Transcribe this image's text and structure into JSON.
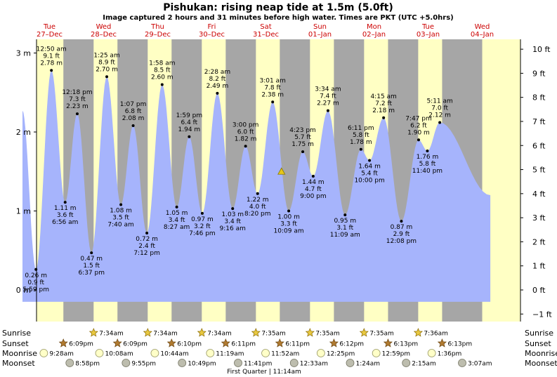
{
  "title": "Pishukan: rising  neap tide at 1.5m (5.0ft)",
  "subtitle": "Image captured 2 hours and 31 minutes before high water. Times are PKT (UTC +5.0hrs)",
  "days": [
    {
      "name": "Tue",
      "date": "27–Dec"
    },
    {
      "name": "Wed",
      "date": "28–Dec"
    },
    {
      "name": "Thu",
      "date": "29–Dec"
    },
    {
      "name": "Fri",
      "date": "30–Dec"
    },
    {
      "name": "Sat",
      "date": "31–Dec"
    },
    {
      "name": "Sun",
      "date": "01–Jan"
    },
    {
      "name": "Mon",
      "date": "02–Jan"
    },
    {
      "name": "Tue",
      "date": "03–Jan"
    },
    {
      "name": "Wed",
      "date": "04–Jan"
    }
  ],
  "chart_data": {
    "type": "area",
    "x_unit": "days after 27-Dec 00:00 (PKT)",
    "y_unit": "m",
    "ylim": [
      -0.5,
      3.2
    ],
    "xlim": [
      0,
      8.5
    ],
    "y_ticks_m": [
      {
        "v": 0,
        "label": "0 m"
      },
      {
        "v": 1,
        "label": "1 m"
      },
      {
        "v": 2,
        "label": "2 m"
      },
      {
        "v": 3,
        "label": "3 m"
      }
    ],
    "y_ticks_ft": [
      {
        "v": -1,
        "label": "−1 ft"
      },
      {
        "v": 0,
        "label": "0 ft"
      },
      {
        "v": 1,
        "label": "1 ft"
      },
      {
        "v": 2,
        "label": "2 ft"
      },
      {
        "v": 3,
        "label": "3 ft"
      },
      {
        "v": 4,
        "label": "4 ft"
      },
      {
        "v": 5,
        "label": "5 ft"
      },
      {
        "v": 6,
        "label": "6 ft"
      },
      {
        "v": 7,
        "label": "7 ft"
      },
      {
        "v": 8,
        "label": "8 ft"
      },
      {
        "v": 9,
        "label": "9 ft"
      },
      {
        "v": 10,
        "label": "10 ft"
      }
    ],
    "series_start": {
      "x": 0.0,
      "y": 2.27
    },
    "series_end": {
      "x": 8.65,
      "y": 1.2
    },
    "extremes": [
      {
        "x": 0.2493,
        "time": "5:59 pm",
        "m": "0.26 m",
        "ft": "0.9 ft",
        "type": "low",
        "value": 0.26
      },
      {
        "x": 0.5347,
        "time": "12:50 am",
        "m": "2.78 m",
        "ft": "9.1 ft",
        "type": "high",
        "value": 2.78
      },
      {
        "x": 0.7889,
        "time": "6:56 am",
        "m": "1.11 m",
        "ft": "3.6 ft",
        "type": "low",
        "value": 1.11
      },
      {
        "x": 1.0125,
        "time": "12:18 pm",
        "m": "2.23 m",
        "ft": "7.3 ft",
        "type": "high",
        "value": 2.23
      },
      {
        "x": 1.2757,
        "time": "6:37 pm",
        "m": "0.47 m",
        "ft": "1.5 ft",
        "type": "low",
        "value": 0.47
      },
      {
        "x": 1.559,
        "time": "1:25 am",
        "m": "2.70 m",
        "ft": "8.9 ft",
        "type": "high",
        "value": 2.7
      },
      {
        "x": 1.8194,
        "time": "7:40 am",
        "m": "1.08 m",
        "ft": "3.5 ft",
        "type": "low",
        "value": 1.08
      },
      {
        "x": 2.0465,
        "time": "1:07 pm",
        "m": "2.08 m",
        "ft": "6.8 ft",
        "type": "high",
        "value": 2.08
      },
      {
        "x": 2.3,
        "time": "7:12 pm",
        "m": "0.72 m",
        "ft": "2.4 ft",
        "type": "low",
        "value": 0.72
      },
      {
        "x": 2.5819,
        "time": "1:58 am",
        "m": "2.60 m",
        "ft": "8.5 ft",
        "type": "high",
        "value": 2.6
      },
      {
        "x": 2.8521,
        "time": "8:27 am",
        "m": "1.05 m",
        "ft": "3.4 ft",
        "type": "low",
        "value": 1.05
      },
      {
        "x": 3.0826,
        "time": "1:59 pm",
        "m": "1.94 m",
        "ft": "6.4 ft",
        "type": "high",
        "value": 1.94
      },
      {
        "x": 3.3236,
        "time": "7:46 pm",
        "m": "0.97 m",
        "ft": "3.2 ft",
        "type": "low",
        "value": 0.97
      },
      {
        "x": 3.6028,
        "time": "2:28 am",
        "m": "2.49 m",
        "ft": "8.2 ft",
        "type": "high",
        "value": 2.49
      },
      {
        "x": 3.8861,
        "time": "9:16 am",
        "m": "1.03 m",
        "ft": "3.4 ft",
        "type": "low",
        "value": 1.03
      },
      {
        "x": 4.125,
        "time": "3:00 pm",
        "m": "1.82 m",
        "ft": "6.0 ft",
        "type": "high",
        "value": 1.82
      },
      {
        "x": 4.3472,
        "time": "8:20 pm",
        "m": "1.22 m",
        "ft": "4.0 ft",
        "type": "low",
        "value": 1.22
      },
      {
        "x": 4.6257,
        "time": "3:01 am",
        "m": "2.38 m",
        "ft": "7.8 ft",
        "type": "high",
        "value": 2.38
      },
      {
        "x": 4.9229,
        "time": "10:09 am",
        "m": "1.00 m",
        "ft": "3.3 ft",
        "type": "low",
        "value": 1.0
      },
      {
        "x": 5.1826,
        "time": "4:23 pm",
        "m": "1.75 m",
        "ft": "5.7 ft",
        "type": "high",
        "value": 1.75
      },
      {
        "x": 5.375,
        "time": "9:00 pm",
        "m": "1.44 m",
        "ft": "4.7 ft",
        "type": "low",
        "value": 1.44
      },
      {
        "x": 5.6486,
        "time": "3:34 am",
        "m": "2.27 m",
        "ft": "7.4 ft",
        "type": "high",
        "value": 2.27
      },
      {
        "x": 5.9646,
        "time": "11:09 am",
        "m": "0.95 m",
        "ft": "3.1 ft",
        "type": "low",
        "value": 0.95
      },
      {
        "x": 6.2576,
        "time": "6:11 pm",
        "m": "1.78 m",
        "ft": "5.8 ft",
        "type": "high",
        "value": 1.78
      },
      {
        "x": 6.4167,
        "time": "10:00 pm",
        "m": "1.64 m",
        "ft": "5.4 ft",
        "type": "low",
        "value": 1.64
      },
      {
        "x": 6.6771,
        "time": "4:15 am",
        "m": "2.18 m",
        "ft": "7.2 ft",
        "type": "high",
        "value": 2.18
      },
      {
        "x": 7.0056,
        "time": "12:08 pm",
        "m": "0.87 m",
        "ft": "2.9 ft",
        "type": "low",
        "value": 0.87
      },
      {
        "x": 7.3243,
        "time": "7:47 pm",
        "m": "1.90 m",
        "ft": "6.2 ft",
        "type": "high",
        "value": 1.9
      },
      {
        "x": 7.4861,
        "time": "11:40 pm",
        "m": "1.76 m",
        "ft": "5.8 ft",
        "type": "low",
        "value": 1.76
      },
      {
        "x": 7.716,
        "time": "5:11 am",
        "m": "2.12 m",
        "ft": "7.0 ft",
        "type": "high",
        "value": 2.12
      }
    ],
    "current": {
      "x": 4.7889,
      "value": 1.5
    },
    "colors": {
      "day": "#ffffc4",
      "night": "#a6a6a6",
      "tide": "#a6b4fc",
      "day_text": "#cc0000"
    }
  },
  "astro": {
    "row_labels": {
      "sunrise": "Sunrise",
      "sunset": "Sunset",
      "moonrise": "Moonrise",
      "moonset": "Moonset"
    },
    "sunrise": [
      {
        "x": 1.3153,
        "t": "7:34am"
      },
      {
        "x": 2.3153,
        "t": "7:34am"
      },
      {
        "x": 3.3153,
        "t": "7:34am"
      },
      {
        "x": 4.316,
        "t": "7:35am"
      },
      {
        "x": 5.316,
        "t": "7:35am"
      },
      {
        "x": 6.316,
        "t": "7:35am"
      },
      {
        "x": 7.3167,
        "t": "7:36am"
      }
    ],
    "sunset": [
      {
        "x": 0.7563,
        "t": "6:09pm"
      },
      {
        "x": 1.7563,
        "t": "6:09pm"
      },
      {
        "x": 2.7569,
        "t": "6:10pm"
      },
      {
        "x": 3.7576,
        "t": "6:11pm"
      },
      {
        "x": 4.7576,
        "t": "6:11pm"
      },
      {
        "x": 5.7583,
        "t": "6:12pm"
      },
      {
        "x": 6.759,
        "t": "6:13pm"
      },
      {
        "x": 7.759,
        "t": "6:13pm"
      }
    ],
    "moonrise": [
      {
        "x": 0.3944,
        "t": "9:28am"
      },
      {
        "x": 1.4222,
        "t": "10:08am"
      },
      {
        "x": 2.4472,
        "t": "10:44am"
      },
      {
        "x": 3.4715,
        "t": "11:19am"
      },
      {
        "x": 4.4944,
        "t": "11:52am"
      },
      {
        "x": 5.5174,
        "t": "12:25pm"
      },
      {
        "x": 6.541,
        "t": "12:59pm"
      },
      {
        "x": 7.5667,
        "t": "1:36pm"
      }
    ],
    "moonset": [
      {
        "x": 0.8736,
        "t": "8:58pm"
      },
      {
        "x": 1.9132,
        "t": "9:55pm"
      },
      {
        "x": 2.9507,
        "t": "10:49pm"
      },
      {
        "x": 3.9868,
        "t": "11:41pm"
      },
      {
        "x": 5.0229,
        "t": "12:33am"
      },
      {
        "x": 6.0583,
        "t": "1:24am"
      },
      {
        "x": 7.0938,
        "t": "2:15am"
      },
      {
        "x": 8.1299,
        "t": "3:07am"
      }
    ],
    "phase": {
      "x": 4.4681,
      "text": "First Quarter | 11:14am"
    }
  }
}
